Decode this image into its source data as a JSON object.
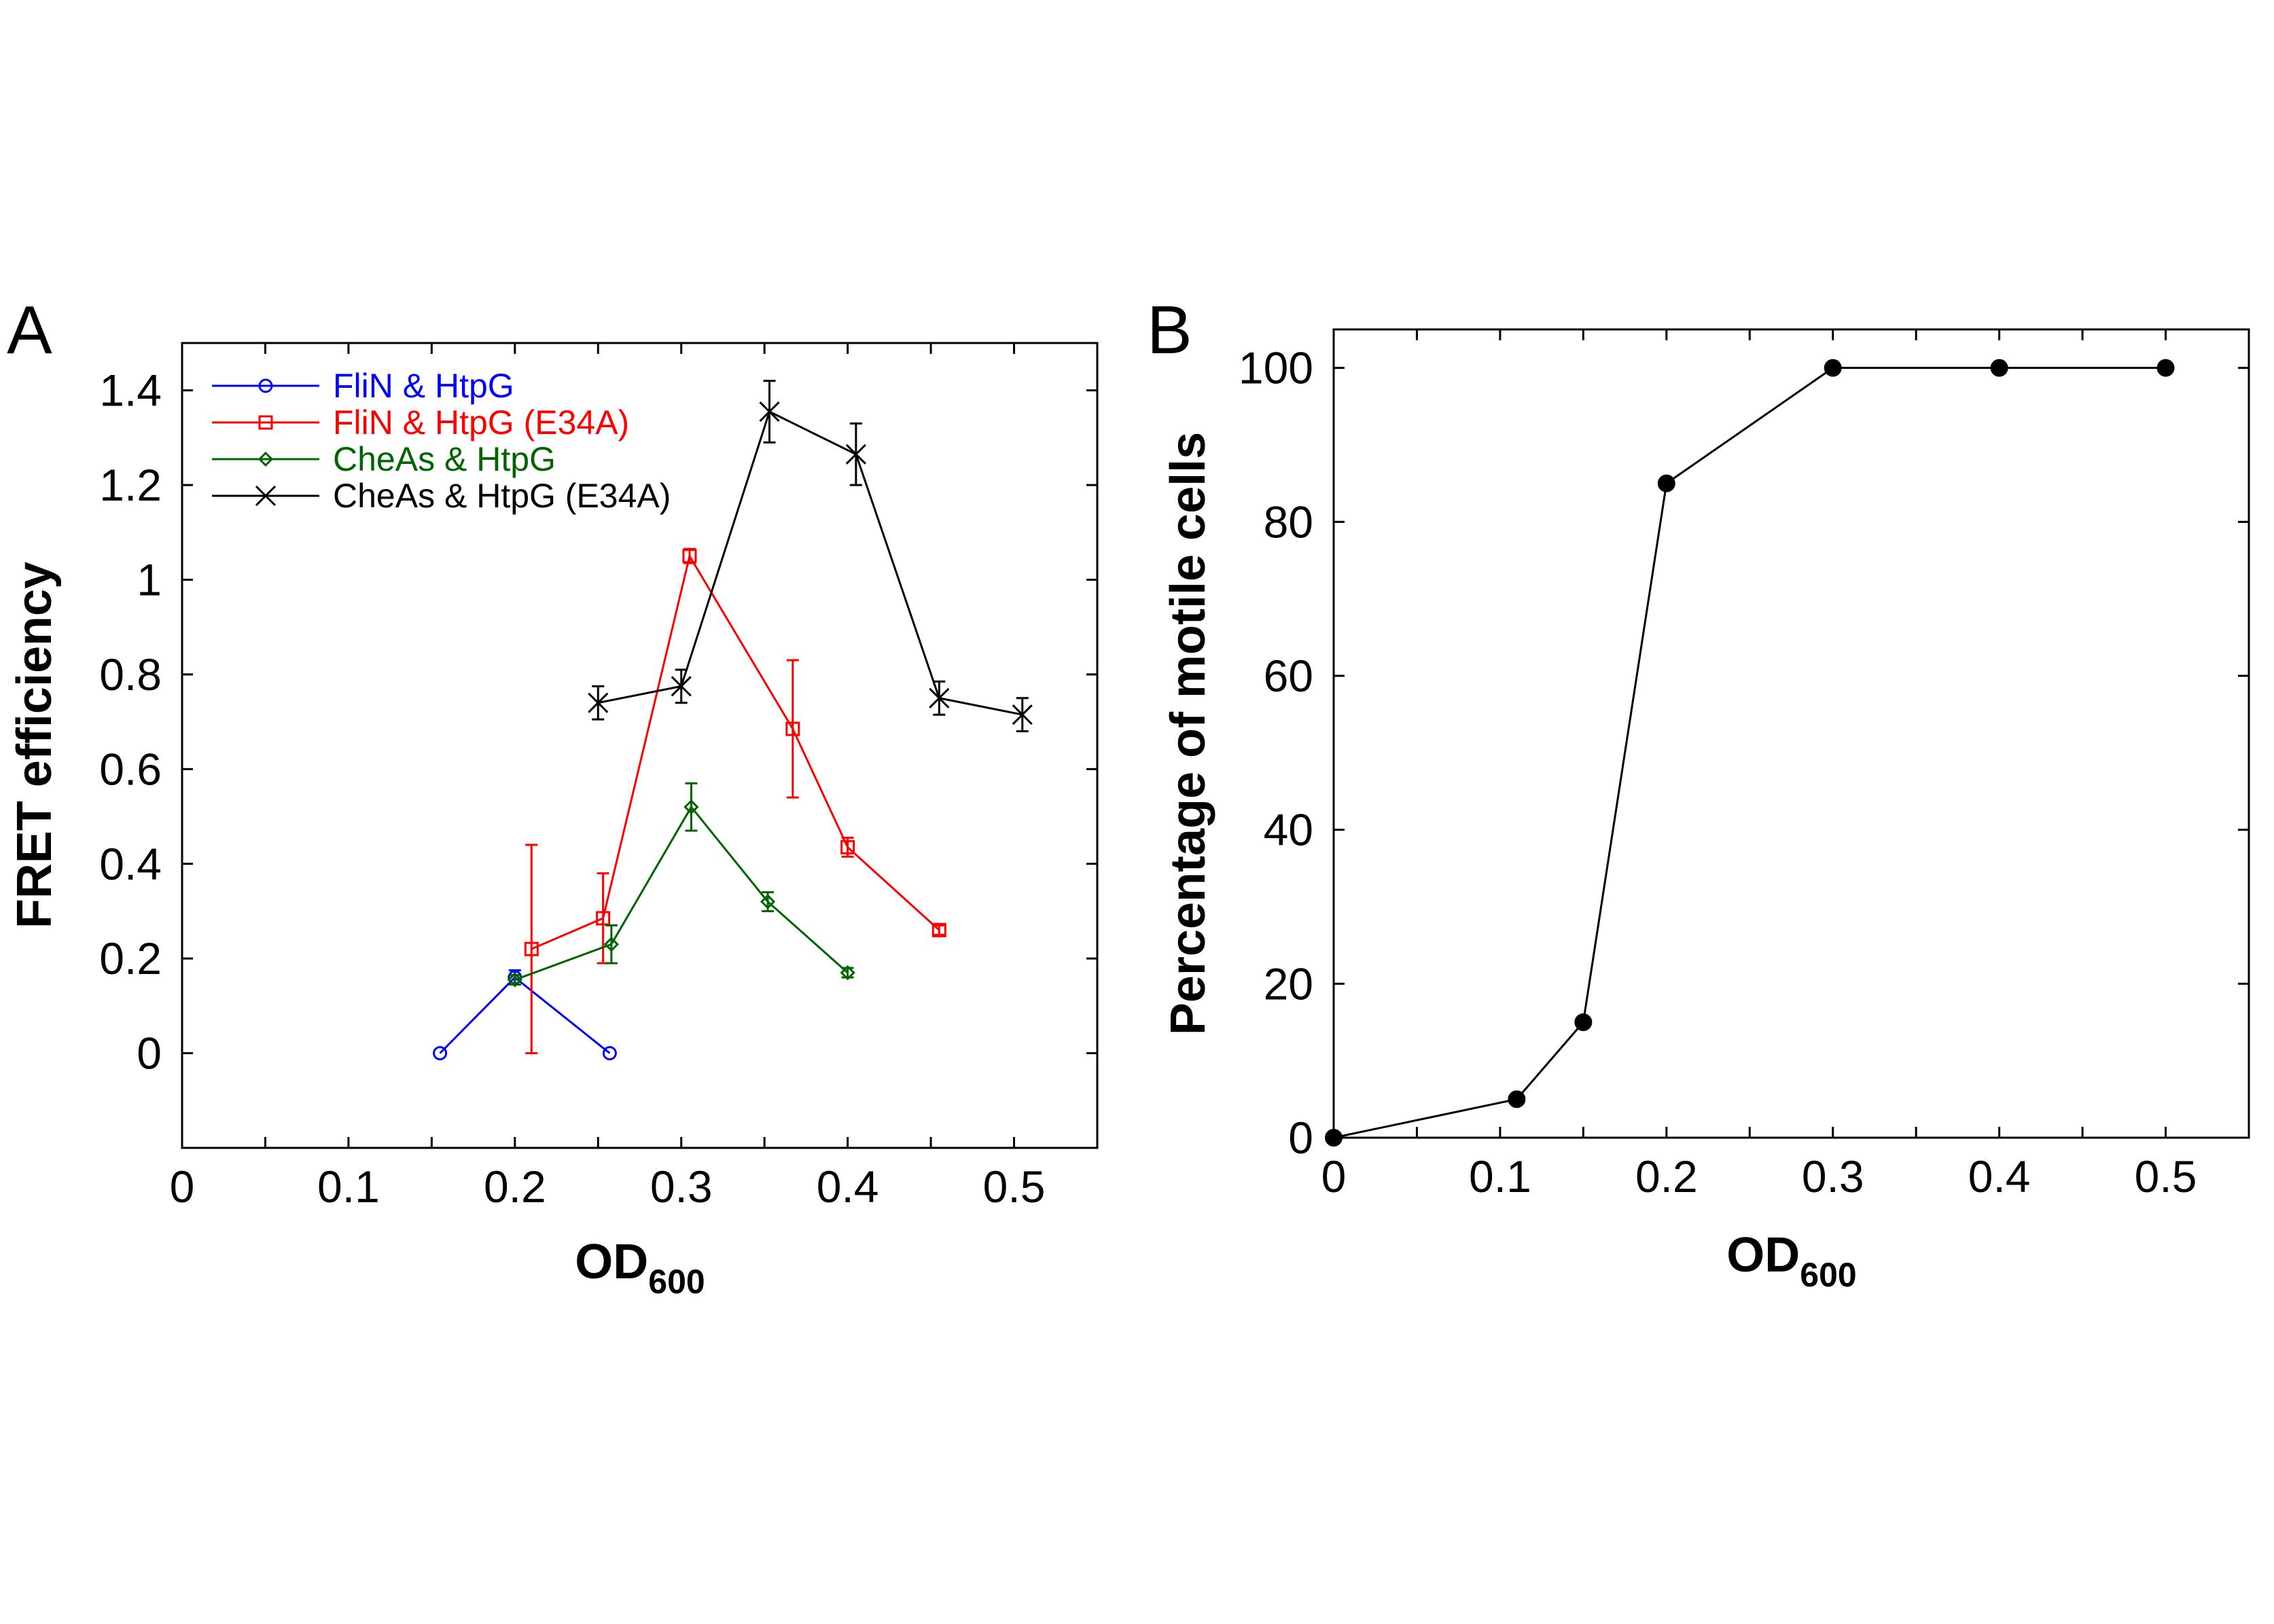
{
  "chart_data": [
    {
      "panel_label": "A",
      "type": "line",
      "xlabel": "OD",
      "xlabel_sub": "600",
      "ylabel": "FRET efficiency",
      "xlim": [
        0,
        0.55
      ],
      "ylim": [
        -0.2,
        1.5
      ],
      "x_ticks": [
        0,
        0.1,
        0.2,
        0.3,
        0.4,
        0.5
      ],
      "x_tick_labels": [
        "0",
        "0.1",
        "0.2",
        "0.3",
        "0.4",
        "0.5"
      ],
      "y_ticks": [
        0,
        0.2,
        0.4,
        0.6,
        0.8,
        1.0,
        1.2,
        1.4
      ],
      "y_tick_labels": [
        "0",
        "0.2",
        "0.4",
        "0.6",
        "0.8",
        "1",
        "1.2",
        "1.4"
      ],
      "legend_position": "top-left",
      "series": [
        {
          "name": "FliN & HtpG",
          "color": "#0000ff",
          "marker": "circle",
          "x": [
            0.155,
            0.2,
            0.257
          ],
          "y": [
            0.0,
            0.16,
            0.0
          ],
          "err": [
            0.0,
            0.015,
            0.0
          ]
        },
        {
          "name": "FliN & HtpG (E34A)",
          "color": "#ff0000",
          "marker": "square",
          "x": [
            0.21,
            0.253,
            0.305,
            0.367,
            0.4,
            0.455
          ],
          "y": [
            0.22,
            0.285,
            1.05,
            0.685,
            0.435,
            0.26
          ],
          "err": [
            0.22,
            0.095,
            0.015,
            0.145,
            0.02,
            0.01
          ]
        },
        {
          "name": "CheAs & HtpG",
          "color": "#006400",
          "marker": "diamond",
          "x": [
            0.2,
            0.258,
            0.306,
            0.352,
            0.4
          ],
          "y": [
            0.155,
            0.23,
            0.52,
            0.32,
            0.17
          ],
          "err": [
            0.01,
            0.04,
            0.05,
            0.02,
            0.01
          ]
        },
        {
          "name": "CheAs & HtpG (E34A)",
          "color": "#000000",
          "marker": "x",
          "x": [
            0.25,
            0.3,
            0.353,
            0.405,
            0.455,
            0.505
          ],
          "y": [
            0.74,
            0.775,
            1.355,
            1.265,
            0.75,
            0.715
          ],
          "err": [
            0.035,
            0.035,
            0.065,
            0.065,
            0.035,
            0.035
          ]
        }
      ]
    },
    {
      "panel_label": "B",
      "type": "line",
      "xlabel": "OD",
      "xlabel_sub": "600",
      "ylabel": "Percentage of motile cells",
      "xlim": [
        0,
        0.55
      ],
      "ylim": [
        0,
        105
      ],
      "x_ticks": [
        0,
        0.1,
        0.2,
        0.3,
        0.4,
        0.5
      ],
      "x_tick_labels": [
        "0",
        "0.1",
        "0.2",
        "0.3",
        "0.4",
        "0.5"
      ],
      "y_ticks": [
        0,
        20,
        40,
        60,
        80,
        100
      ],
      "y_tick_labels": [
        "0",
        "20",
        "40",
        "60",
        "80",
        "100"
      ],
      "series": [
        {
          "color": "#000000",
          "marker": "filled-circle",
          "x": [
            0,
            0.11,
            0.15,
            0.2,
            0.3,
            0.4,
            0.5
          ],
          "y": [
            0,
            5,
            15,
            85,
            100,
            100,
            100
          ]
        }
      ]
    }
  ]
}
